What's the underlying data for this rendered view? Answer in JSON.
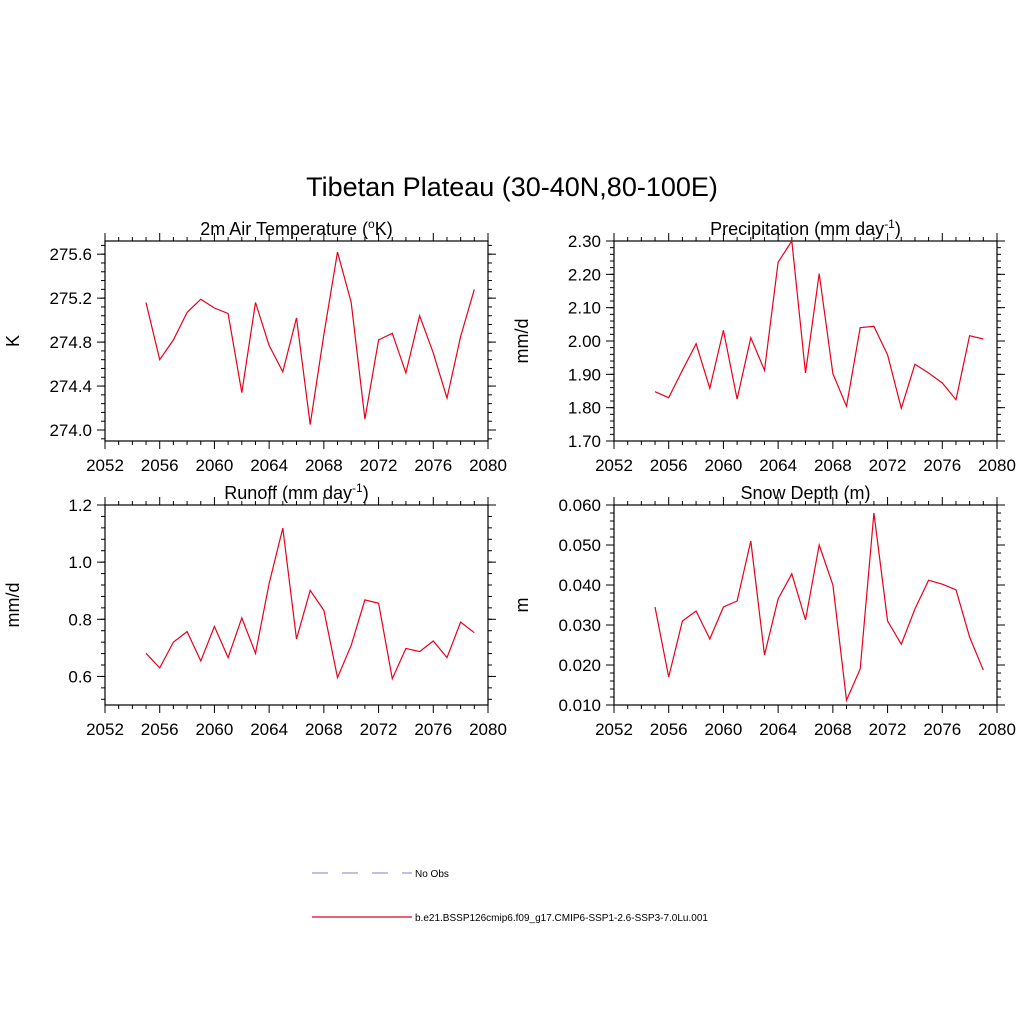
{
  "figure": {
    "title": "Tibetan Plateau (30-40N,80-100E)"
  },
  "legend": {
    "entries": [
      {
        "label": "No Obs",
        "color": "#9999dd",
        "style": "dashed"
      },
      {
        "label": "b.e21.BSSP126cmip6.f09_g17.CMIP6-SSP1-2.6-SSP3-7.0Lu.001",
        "color": "#e8001c",
        "style": "solid"
      }
    ]
  },
  "chart_data": [
    {
      "type": "line",
      "title": "2m Air Temperature (",
      "title_sup": "o",
      "title_after": "K)",
      "xlabel": "",
      "ylabel": "K",
      "xlim": [
        2052,
        2080
      ],
      "ylim": [
        273.9,
        275.72
      ],
      "xticks": [
        2052,
        2056,
        2060,
        2064,
        2068,
        2072,
        2076,
        2080
      ],
      "yticks": [
        274.0,
        274.4,
        274.8,
        275.2,
        275.6
      ],
      "ytick_labels": [
        "274.0",
        "274.4",
        "274.8",
        "275.2",
        "275.6"
      ],
      "y_minor_step": 0.08,
      "color": "#e8001c",
      "x": [
        2055,
        2056,
        2057,
        2058,
        2059,
        2060,
        2061,
        2062,
        2063,
        2064,
        2065,
        2066,
        2067,
        2068,
        2069,
        2070,
        2071,
        2072,
        2073,
        2074,
        2075,
        2076,
        2077,
        2078,
        2079
      ],
      "y": [
        275.16,
        274.64,
        274.82,
        275.07,
        275.19,
        275.11,
        275.06,
        274.34,
        275.16,
        274.77,
        274.53,
        275.02,
        274.05,
        274.87,
        275.62,
        275.16,
        274.1,
        274.82,
        274.88,
        274.52,
        275.04,
        274.7,
        274.29,
        274.85,
        275.28
      ]
    },
    {
      "type": "line",
      "title": "Precipitation (mm day",
      "title_sup": "-1",
      "title_after": ")",
      "xlabel": "",
      "ylabel": "mm/d",
      "xlim": [
        2052,
        2080
      ],
      "ylim": [
        1.7,
        2.3
      ],
      "xticks": [
        2052,
        2056,
        2060,
        2064,
        2068,
        2072,
        2076,
        2080
      ],
      "yticks": [
        1.7,
        1.8,
        1.9,
        2.0,
        2.1,
        2.2,
        2.3
      ],
      "ytick_labels": [
        "1.70",
        "1.80",
        "1.90",
        "2.00",
        "2.10",
        "2.20",
        "2.30"
      ],
      "y_minor_step": 0.02,
      "color": "#e8001c",
      "x": [
        2055,
        2056,
        2057,
        2058,
        2059,
        2060,
        2061,
        2062,
        2063,
        2064,
        2065,
        2066,
        2067,
        2068,
        2069,
        2070,
        2071,
        2072,
        2073,
        2074,
        2075,
        2076,
        2077,
        2078,
        2079
      ],
      "y": [
        1.848,
        1.83,
        1.912,
        1.992,
        1.858,
        2.032,
        1.826,
        2.01,
        1.912,
        2.236,
        2.3,
        1.904,
        2.202,
        1.902,
        1.804,
        2.04,
        2.044,
        1.958,
        1.798,
        1.93,
        1.904,
        1.874,
        1.824,
        2.016,
        2.006
      ]
    },
    {
      "type": "line",
      "title": "Runoff (mm day",
      "title_sup": "-1",
      "title_after": ")",
      "xlabel": "",
      "ylabel": "mm/d",
      "xlim": [
        2052,
        2080
      ],
      "ylim": [
        0.5,
        1.2
      ],
      "xticks": [
        2052,
        2056,
        2060,
        2064,
        2068,
        2072,
        2076,
        2080
      ],
      "yticks": [
        0.6,
        0.8,
        1.0,
        1.2
      ],
      "ytick_labels": [
        "0.6",
        "0.8",
        "1.0",
        "1.2"
      ],
      "y_minor_step": 0.04,
      "color": "#e8001c",
      "x": [
        2055,
        2056,
        2057,
        2058,
        2059,
        2060,
        2061,
        2062,
        2063,
        2064,
        2065,
        2066,
        2067,
        2068,
        2069,
        2070,
        2071,
        2072,
        2073,
        2074,
        2075,
        2076,
        2077,
        2078,
        2079
      ],
      "y": [
        0.681,
        0.63,
        0.72,
        0.757,
        0.654,
        0.775,
        0.666,
        0.805,
        0.681,
        0.925,
        1.119,
        0.731,
        0.901,
        0.831,
        0.596,
        0.709,
        0.868,
        0.856,
        0.592,
        0.698,
        0.687,
        0.724,
        0.666,
        0.79,
        0.753
      ]
    },
    {
      "type": "line",
      "title": "Snow Depth (m)",
      "title_sup": "",
      "title_after": "",
      "xlabel": "",
      "ylabel": "m",
      "xlim": [
        2052,
        2080
      ],
      "ylim": [
        0.01,
        0.06
      ],
      "xticks": [
        2052,
        2056,
        2060,
        2064,
        2068,
        2072,
        2076,
        2080
      ],
      "yticks": [
        0.01,
        0.02,
        0.03,
        0.04,
        0.05,
        0.06
      ],
      "ytick_labels": [
        "0.010",
        "0.020",
        "0.030",
        "0.040",
        "0.050",
        "0.060"
      ],
      "y_minor_step": 0.002,
      "color": "#e8001c",
      "x": [
        2055,
        2056,
        2057,
        2058,
        2059,
        2060,
        2061,
        2062,
        2063,
        2064,
        2065,
        2066,
        2067,
        2068,
        2069,
        2070,
        2071,
        2072,
        2073,
        2074,
        2075,
        2076,
        2077,
        2078,
        2079
      ],
      "y": [
        0.0345,
        0.017,
        0.031,
        0.0335,
        0.0265,
        0.0345,
        0.036,
        0.051,
        0.0225,
        0.0365,
        0.0428,
        0.0313,
        0.05,
        0.04,
        0.0112,
        0.019,
        0.058,
        0.031,
        0.0252,
        0.034,
        0.0412,
        0.0402,
        0.0388,
        0.027,
        0.0187
      ]
    }
  ]
}
